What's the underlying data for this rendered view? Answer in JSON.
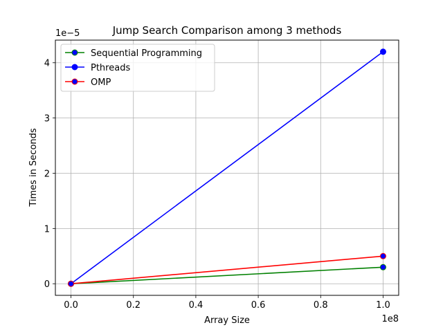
{
  "chart_data": {
    "type": "line",
    "title": "Jump Search Comparison among 3 methods",
    "xlabel": "Array Size",
    "ylabel": "Times in Seconds",
    "x_offset_label": "1e8",
    "y_offset_label": "1e−5",
    "x_ticks": [
      "0.0",
      "0.2",
      "0.4",
      "0.6",
      "0.8",
      "1.0"
    ],
    "y_ticks": [
      "0",
      "1",
      "2",
      "3",
      "4"
    ],
    "x": [
      0,
      100000000
    ],
    "xlim": [
      -5000000,
      105000000
    ],
    "ylim": [
      -2.1e-06,
      4.41e-05
    ],
    "grid": true,
    "legend_position": "upper-left",
    "series": [
      {
        "name": "Sequential Programming",
        "values": [
          0,
          3e-06
        ],
        "color": "#008000",
        "marker_color": "#0000ff"
      },
      {
        "name": "Pthreads",
        "values": [
          0,
          4.2e-05
        ],
        "color": "#0000ff",
        "marker_color": "#0000ff"
      },
      {
        "name": "OMP",
        "values": [
          0,
          5e-06
        ],
        "color": "#ff0000",
        "marker_color": "#0000ff"
      }
    ]
  }
}
